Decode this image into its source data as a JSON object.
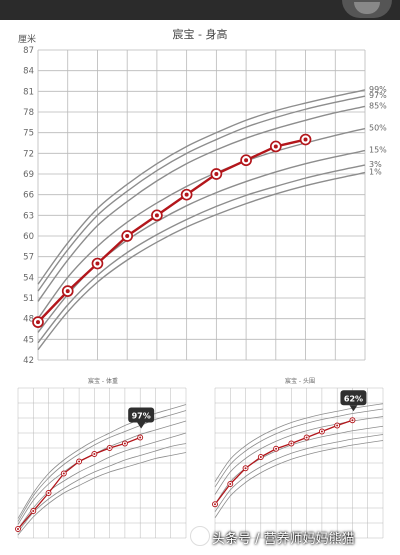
{
  "chart_data": [
    {
      "type": "line",
      "title": "宸宝 - 身高",
      "ylabel": "厘米",
      "ylim": [
        42,
        87
      ],
      "yticks": [
        42,
        45,
        48,
        51,
        54,
        57,
        60,
        63,
        66,
        69,
        72,
        75,
        78,
        81,
        84,
        87
      ],
      "x_count": 12,
      "percentiles": [
        {
          "label": "99%",
          "values": [
            53,
            59,
            64,
            67.5,
            70.5,
            73,
            75,
            76.8,
            78.2,
            79.3,
            80.3,
            81.2
          ]
        },
        {
          "label": "97%",
          "values": [
            52,
            58,
            63,
            66.5,
            69.5,
            72,
            74,
            75.8,
            77.2,
            78.4,
            79.4,
            80.3
          ]
        },
        {
          "label": "85%",
          "values": [
            50.5,
            56.5,
            61.5,
            65,
            68,
            70.5,
            72.5,
            74.2,
            75.6,
            76.8,
            77.9,
            78.8
          ]
        },
        {
          "label": "50%",
          "values": [
            48,
            54,
            58.5,
            62,
            64.8,
            67.2,
            69.2,
            70.9,
            72.3,
            73.5,
            74.6,
            75.6
          ]
        },
        {
          "label": "15%",
          "values": [
            46,
            51.5,
            56,
            59.4,
            62.1,
            64.4,
            66.3,
            67.9,
            69.3,
            70.5,
            71.5,
            72.4
          ]
        },
        {
          "label": "3%",
          "values": [
            44.5,
            50,
            54.3,
            57.6,
            60.2,
            62.4,
            64.3,
            65.9,
            67.2,
            68.4,
            69.4,
            70.3
          ]
        },
        {
          "label": "1%",
          "values": [
            43.5,
            49,
            53.3,
            56.5,
            59.1,
            61.3,
            63.1,
            64.7,
            66.1,
            67.3,
            68.3,
            69.2
          ]
        }
      ],
      "series": [
        {
          "x": [
            0,
            1,
            2,
            3,
            4,
            5,
            6,
            7,
            8,
            9
          ],
          "values": [
            47.5,
            52,
            56,
            60,
            63,
            66,
            69,
            71,
            73,
            74
          ]
        }
      ]
    },
    {
      "type": "line",
      "title": "宸宝 - 体重",
      "badge": "97%",
      "ylim": [
        2,
        12
      ],
      "x_count": 12,
      "percentiles": [
        {
          "values": [
            3.3,
            5,
            6.3,
            7.2,
            7.9,
            8.5,
            9,
            9.5,
            9.9,
            10.3,
            10.6,
            10.9
          ]
        },
        {
          "values": [
            3.1,
            4.8,
            6,
            6.9,
            7.6,
            8.2,
            8.7,
            9.1,
            9.5,
            9.9,
            10.2,
            10.5
          ]
        },
        {
          "values": [
            2.9,
            4.5,
            5.6,
            6.4,
            7.1,
            7.6,
            8.1,
            8.5,
            8.9,
            9.2,
            9.5,
            9.8
          ]
        },
        {
          "values": [
            2.6,
            4,
            5.1,
            5.8,
            6.4,
            6.9,
            7.4,
            7.8,
            8.1,
            8.4,
            8.7,
            9
          ]
        },
        {
          "values": [
            2.4,
            3.7,
            4.6,
            5.3,
            5.9,
            6.4,
            6.8,
            7.2,
            7.5,
            7.8,
            8.1,
            8.3
          ]
        },
        {
          "values": [
            2.2,
            3.4,
            4.3,
            5,
            5.5,
            6,
            6.4,
            6.7,
            7,
            7.3,
            7.5,
            7.7
          ]
        }
      ],
      "series": [
        {
          "x": [
            0,
            1,
            2,
            3,
            4,
            5,
            6,
            7,
            8
          ],
          "values": [
            2.6,
            3.8,
            5,
            6.3,
            7.1,
            7.6,
            8,
            8.3,
            8.7
          ]
        }
      ]
    },
    {
      "type": "line",
      "title": "宸宝 - 头围",
      "badge": "62%",
      "ylim": [
        30,
        50
      ],
      "x_count": 12,
      "percentiles": [
        {
          "values": [
            37.5,
            40.5,
            42.3,
            43.6,
            44.6,
            45.4,
            46,
            46.5,
            46.9,
            47.3,
            47.6,
            47.9
          ]
        },
        {
          "values": [
            36.8,
            39.8,
            41.6,
            42.9,
            43.9,
            44.7,
            45.3,
            45.8,
            46.2,
            46.6,
            46.9,
            47.2
          ]
        },
        {
          "values": [
            35.8,
            38.8,
            40.6,
            41.9,
            42.9,
            43.7,
            44.3,
            44.8,
            45.2,
            45.6,
            45.9,
            46.2
          ]
        },
        {
          "values": [
            34.5,
            37.5,
            39.3,
            40.6,
            41.6,
            42.4,
            43,
            43.5,
            43.9,
            44.3,
            44.6,
            44.9
          ]
        },
        {
          "values": [
            33.5,
            36.4,
            38.2,
            39.5,
            40.5,
            41.3,
            41.9,
            42.4,
            42.8,
            43.2,
            43.5,
            43.8
          ]
        },
        {
          "values": [
            32.7,
            35.6,
            37.4,
            38.7,
            39.7,
            40.5,
            41.1,
            41.6,
            42,
            42.4,
            42.7,
            43
          ]
        }
      ],
      "series": [
        {
          "x": [
            0,
            1,
            2,
            3,
            4,
            5,
            6,
            7,
            8,
            9
          ],
          "values": [
            34.5,
            37.2,
            39.3,
            40.8,
            41.9,
            42.6,
            43.4,
            44.2,
            45,
            45.7
          ]
        }
      ]
    }
  ],
  "watermark": "头条号 / 营养师妈妈熊猫"
}
